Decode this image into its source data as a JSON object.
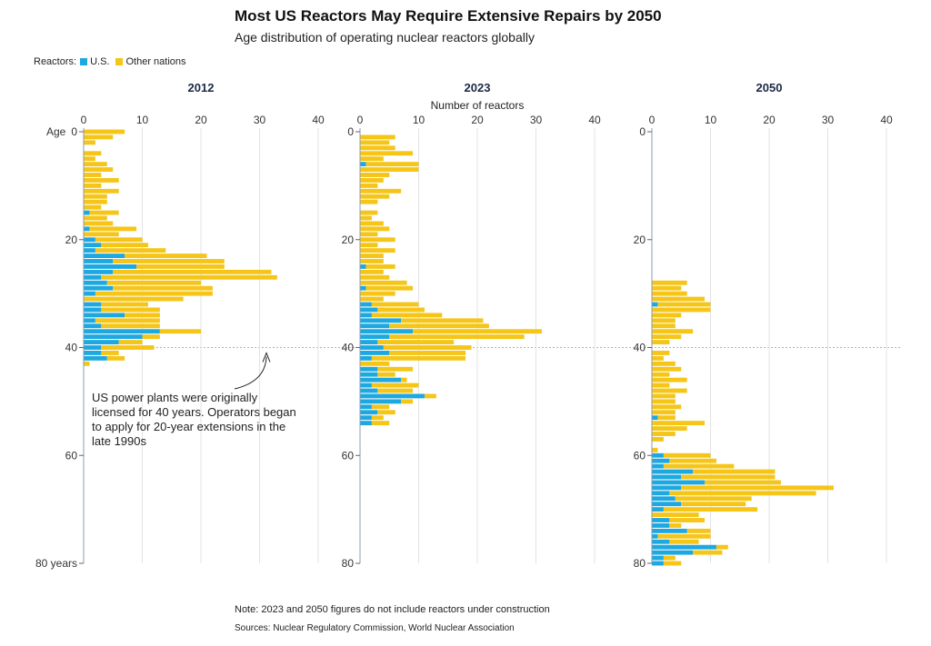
{
  "title": "Most US Reactors May Require Extensive Repairs by 2050",
  "subtitle": "Age distribution of operating nuclear reactors globally",
  "legend": {
    "label": "Reactors:",
    "items": [
      {
        "name": "U.S.",
        "color": "#1ea8e0"
      },
      {
        "name": "Other nations",
        "color": "#f5c518"
      }
    ]
  },
  "note": "Note: 2023 and 2050 figures do not include reactors under construction",
  "source": "Sources: Nuclear Regulatory Commission, World Nuclear Association",
  "annotation": "US power plants were originally licensed for 40 years. Operators began to apply for 20-year extensions in the late 1990s",
  "chart_data": [
    {
      "type": "bar",
      "orientation": "horizontal",
      "stacked": true,
      "title": "2012",
      "xlabel": "",
      "ylabel": "Age",
      "xlim": [
        0,
        40
      ],
      "ylim": [
        0,
        80
      ],
      "x_ticks": [
        "0",
        "10",
        "20",
        "30",
        "40"
      ],
      "y_ticks": [
        "0",
        "20",
        "40",
        "60",
        "80 years"
      ],
      "reference_line": 40,
      "categories": [
        0,
        1,
        2,
        3,
        4,
        5,
        6,
        7,
        8,
        9,
        10,
        11,
        12,
        13,
        14,
        15,
        16,
        17,
        18,
        19,
        20,
        21,
        22,
        23,
        24,
        25,
        26,
        27,
        28,
        29,
        30,
        31,
        32,
        33,
        34,
        35,
        36,
        37,
        38,
        39,
        40,
        41,
        42,
        43,
        44,
        45,
        46,
        47,
        48,
        49,
        50,
        51,
        52,
        53,
        54,
        55,
        56,
        57,
        58,
        59,
        60,
        61,
        62,
        63,
        64,
        65,
        66,
        67,
        68,
        69,
        70,
        71,
        72,
        73,
        74,
        75,
        76,
        77,
        78,
        79,
        80
      ],
      "series": [
        {
          "name": "U.S.",
          "values": [
            0,
            0,
            0,
            0,
            0,
            0,
            0,
            0,
            0,
            0,
            0,
            0,
            0,
            0,
            0,
            1,
            0,
            0,
            1,
            0,
            2,
            3,
            2,
            7,
            5,
            9,
            5,
            3,
            4,
            5,
            2,
            0,
            3,
            3,
            7,
            2,
            3,
            13,
            10,
            6,
            3,
            3,
            4,
            0,
            0,
            0,
            0,
            0,
            0,
            0,
            0,
            0,
            0,
            0,
            0,
            0,
            0,
            0,
            0,
            0,
            0,
            0,
            0,
            0,
            0,
            0,
            0,
            0,
            0,
            0,
            0,
            0,
            0,
            0,
            0,
            0,
            0,
            0,
            0,
            0,
            0
          ]
        },
        {
          "name": "Other nations",
          "values": [
            7,
            5,
            2,
            0,
            3,
            2,
            4,
            5,
            3,
            6,
            3,
            6,
            4,
            4,
            3,
            5,
            4,
            5,
            8,
            6,
            8,
            8,
            12,
            14,
            19,
            15,
            27,
            30,
            16,
            17,
            20,
            17,
            8,
            10,
            6,
            11,
            10,
            7,
            3,
            4,
            9,
            3,
            3,
            1,
            0,
            0,
            0,
            0,
            0,
            0,
            0,
            0,
            0,
            0,
            0,
            0,
            0,
            0,
            0,
            0,
            0,
            0,
            0,
            0,
            0,
            0,
            0,
            0,
            0,
            0,
            0,
            0,
            0,
            0,
            0,
            0,
            0,
            0,
            0,
            0,
            0
          ]
        }
      ]
    },
    {
      "type": "bar",
      "orientation": "horizontal",
      "stacked": true,
      "title": "2023",
      "xlabel": "Number of reactors",
      "ylabel": "",
      "xlim": [
        0,
        40
      ],
      "ylim": [
        0,
        80
      ],
      "x_ticks": [
        "0",
        "10",
        "20",
        "30",
        "40"
      ],
      "y_ticks": [
        "0",
        "20",
        "40",
        "60",
        "80"
      ],
      "reference_line": 40,
      "categories": [
        0,
        1,
        2,
        3,
        4,
        5,
        6,
        7,
        8,
        9,
        10,
        11,
        12,
        13,
        14,
        15,
        16,
        17,
        18,
        19,
        20,
        21,
        22,
        23,
        24,
        25,
        26,
        27,
        28,
        29,
        30,
        31,
        32,
        33,
        34,
        35,
        36,
        37,
        38,
        39,
        40,
        41,
        42,
        43,
        44,
        45,
        46,
        47,
        48,
        49,
        50,
        51,
        52,
        53,
        54,
        55,
        56,
        57,
        58,
        59,
        60,
        61,
        62,
        63,
        64,
        65,
        66,
        67,
        68,
        69,
        70,
        71,
        72,
        73,
        74,
        75,
        76,
        77,
        78,
        79,
        80
      ],
      "series": [
        {
          "name": "U.S.",
          "values": [
            0,
            0,
            0,
            0,
            0,
            0,
            1,
            0,
            0,
            0,
            0,
            0,
            0,
            0,
            0,
            0,
            0,
            0,
            0,
            0,
            0,
            0,
            0,
            0,
            0,
            1,
            0,
            0,
            0,
            1,
            0,
            0,
            2,
            3,
            2,
            7,
            5,
            9,
            5,
            3,
            4,
            5,
            2,
            0,
            3,
            3,
            7,
            2,
            3,
            11,
            7,
            2,
            3,
            2,
            2,
            0,
            0,
            0,
            0,
            0,
            0,
            0,
            0,
            0,
            0,
            0,
            0,
            0,
            0,
            0,
            0,
            0,
            0,
            0,
            0,
            0,
            0,
            0,
            0,
            0,
            0
          ]
        },
        {
          "name": "Other nations",
          "values": [
            0,
            6,
            5,
            6,
            9,
            4,
            9,
            10,
            5,
            4,
            3,
            7,
            5,
            3,
            0,
            3,
            2,
            4,
            5,
            3,
            6,
            3,
            6,
            4,
            4,
            5,
            4,
            5,
            8,
            8,
            6,
            4,
            8,
            8,
            12,
            14,
            17,
            22,
            23,
            13,
            15,
            13,
            16,
            5,
            6,
            3,
            1,
            8,
            6,
            2,
            2,
            3,
            3,
            2,
            3,
            0,
            0,
            0,
            0,
            0,
            0,
            0,
            0,
            0,
            0,
            0,
            0,
            0,
            0,
            0,
            0,
            0,
            0,
            0,
            0,
            0,
            0,
            0,
            0,
            0,
            0
          ]
        }
      ]
    },
    {
      "type": "bar",
      "orientation": "horizontal",
      "stacked": true,
      "title": "2050",
      "xlabel": "",
      "ylabel": "",
      "xlim": [
        0,
        40
      ],
      "ylim": [
        0,
        80
      ],
      "x_ticks": [
        "0",
        "10",
        "20",
        "30",
        "40"
      ],
      "y_ticks": [
        "0",
        "20",
        "40",
        "60",
        "80"
      ],
      "reference_line": 40,
      "categories": [
        0,
        1,
        2,
        3,
        4,
        5,
        6,
        7,
        8,
        9,
        10,
        11,
        12,
        13,
        14,
        15,
        16,
        17,
        18,
        19,
        20,
        21,
        22,
        23,
        24,
        25,
        26,
        27,
        28,
        29,
        30,
        31,
        32,
        33,
        34,
        35,
        36,
        37,
        38,
        39,
        40,
        41,
        42,
        43,
        44,
        45,
        46,
        47,
        48,
        49,
        50,
        51,
        52,
        53,
        54,
        55,
        56,
        57,
        58,
        59,
        60,
        61,
        62,
        63,
        64,
        65,
        66,
        67,
        68,
        69,
        70,
        71,
        72,
        73,
        74,
        75,
        76,
        77,
        78,
        79,
        80
      ],
      "series": [
        {
          "name": "U.S.",
          "values": [
            0,
            0,
            0,
            0,
            0,
            0,
            0,
            0,
            0,
            0,
            0,
            0,
            0,
            0,
            0,
            0,
            0,
            0,
            0,
            0,
            0,
            0,
            0,
            0,
            0,
            0,
            0,
            0,
            0,
            0,
            0,
            0,
            1,
            0,
            0,
            0,
            0,
            0,
            0,
            0,
            0,
            0,
            0,
            0,
            0,
            0,
            0,
            0,
            0,
            0,
            0,
            0,
            0,
            1,
            0,
            0,
            0,
            0,
            0,
            0,
            2,
            3,
            2,
            7,
            5,
            9,
            5,
            3,
            4,
            5,
            2,
            0,
            3,
            3,
            6,
            1,
            3,
            11,
            7,
            2,
            2
          ]
        },
        {
          "name": "Other nations",
          "values": [
            0,
            0,
            0,
            0,
            0,
            0,
            0,
            0,
            0,
            0,
            0,
            0,
            0,
            0,
            0,
            0,
            0,
            0,
            0,
            0,
            0,
            0,
            0,
            0,
            0,
            0,
            0,
            0,
            6,
            5,
            6,
            9,
            9,
            10,
            5,
            4,
            4,
            7,
            5,
            3,
            0,
            3,
            2,
            4,
            5,
            3,
            6,
            3,
            6,
            4,
            4,
            5,
            4,
            3,
            9,
            6,
            4,
            2,
            0,
            1,
            8,
            8,
            12,
            14,
            16,
            13,
            26,
            25,
            13,
            11,
            16,
            8,
            6,
            2,
            4,
            9,
            5,
            2,
            5,
            2,
            3
          ]
        }
      ]
    }
  ]
}
